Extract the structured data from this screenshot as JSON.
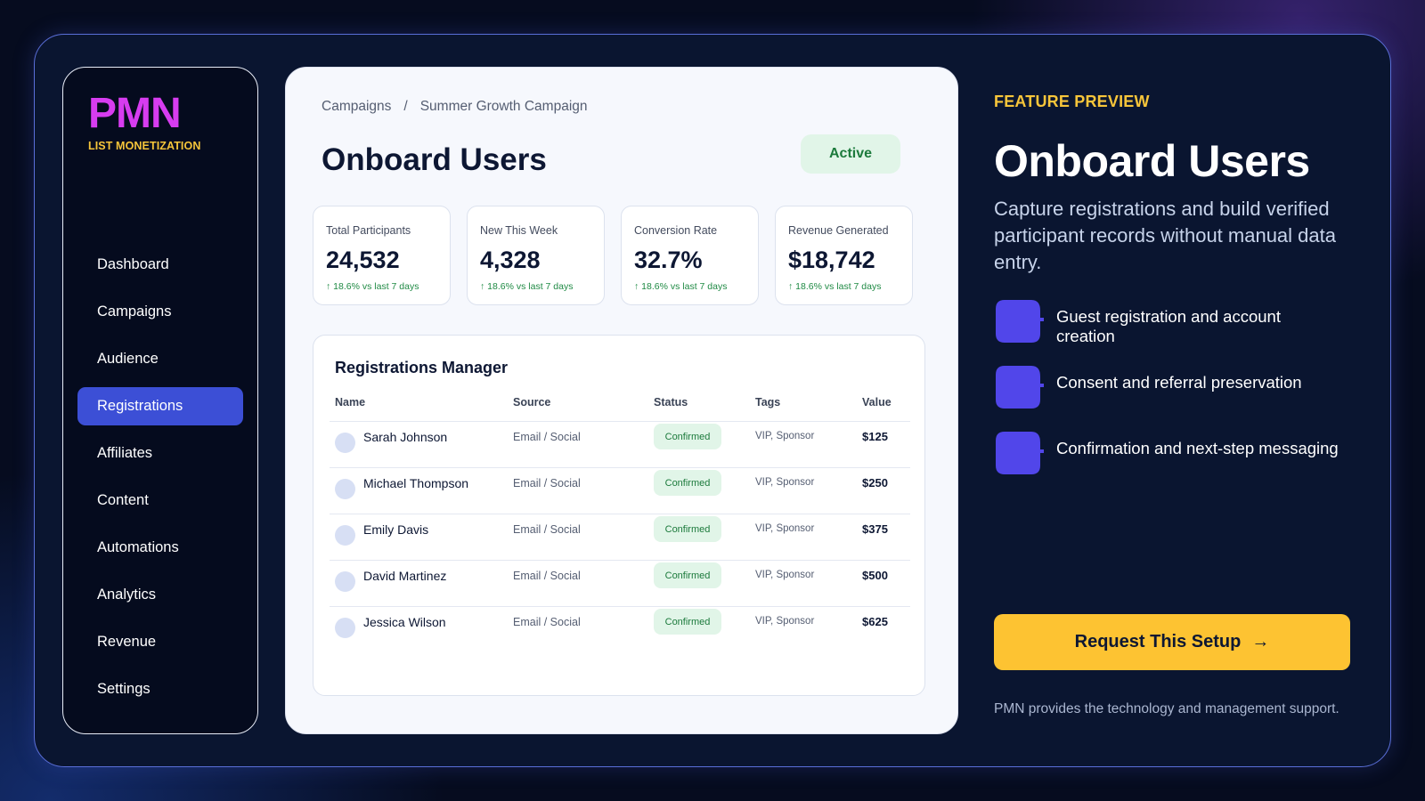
{
  "brand": {
    "name": "PMN",
    "tagline": "LIST MONETIZATION",
    "colors": {
      "logo": "#d73cf0",
      "tagline": "#f7c53a",
      "accent": "#3c4fd6",
      "cta": "#fdc332"
    }
  },
  "sidebar": {
    "items": [
      {
        "label": "Dashboard",
        "active": false
      },
      {
        "label": "Campaigns",
        "active": false
      },
      {
        "label": "Audience",
        "active": false
      },
      {
        "label": "Registrations",
        "active": true
      },
      {
        "label": "Affiliates",
        "active": false
      },
      {
        "label": "Content",
        "active": false
      },
      {
        "label": "Automations",
        "active": false
      },
      {
        "label": "Analytics",
        "active": false
      },
      {
        "label": "Revenue",
        "active": false
      },
      {
        "label": "Settings",
        "active": false
      }
    ]
  },
  "main": {
    "breadcrumb": {
      "root": "Campaigns",
      "separator": "/",
      "current": "Summer Growth Campaign"
    },
    "title": "Onboard Users",
    "status": "Active",
    "stats": [
      {
        "label": "Total Participants",
        "value": "24,532",
        "change": "↑ 18.6% vs last 7 days"
      },
      {
        "label": "New This Week",
        "value": "4,328",
        "change": "↑ 18.6% vs last 7 days"
      },
      {
        "label": "Conversion Rate",
        "value": "32.7%",
        "change": "↑ 18.6% vs last 7 days"
      },
      {
        "label": "Revenue Generated",
        "value": "$18,742",
        "change": "↑ 18.6% vs last 7 days"
      }
    ],
    "table": {
      "title": "Registrations Manager",
      "columns": {
        "name": "Name",
        "source": "Source",
        "status": "Status",
        "tags": "Tags",
        "value": "Value"
      },
      "rows": [
        {
          "name": "Sarah Johnson",
          "source": "Email / Social",
          "status": "Confirmed",
          "tags": "VIP, Sponsor",
          "value": "$125"
        },
        {
          "name": "Michael Thompson",
          "source": "Email / Social",
          "status": "Confirmed",
          "tags": "VIP, Sponsor",
          "value": "$250"
        },
        {
          "name": "Emily Davis",
          "source": "Email / Social",
          "status": "Confirmed",
          "tags": "VIP, Sponsor",
          "value": "$375"
        },
        {
          "name": "David Martinez",
          "source": "Email / Social",
          "status": "Confirmed",
          "tags": "VIP, Sponsor",
          "value": "$500"
        },
        {
          "name": "Jessica Wilson",
          "source": "Email / Social",
          "status": "Confirmed",
          "tags": "VIP, Sponsor",
          "value": "$625"
        }
      ]
    }
  },
  "panel": {
    "eyebrow": "FEATURE PREVIEW",
    "title": "Onboard Users",
    "description": "Capture registrations and build verified participant records without manual data entry.",
    "features": [
      {
        "text": "Guest registration and account creation",
        "icon": "feature-badge-icon"
      },
      {
        "text": "Consent and referral preservation",
        "icon": "feature-badge-icon"
      },
      {
        "text": "Confirmation and next-step messaging",
        "icon": "feature-badge-icon"
      }
    ],
    "cta": {
      "label": "Request This Setup",
      "icon": "arrow-right-icon",
      "arrow": "→"
    },
    "footnote": "PMN provides the technology and management support."
  }
}
